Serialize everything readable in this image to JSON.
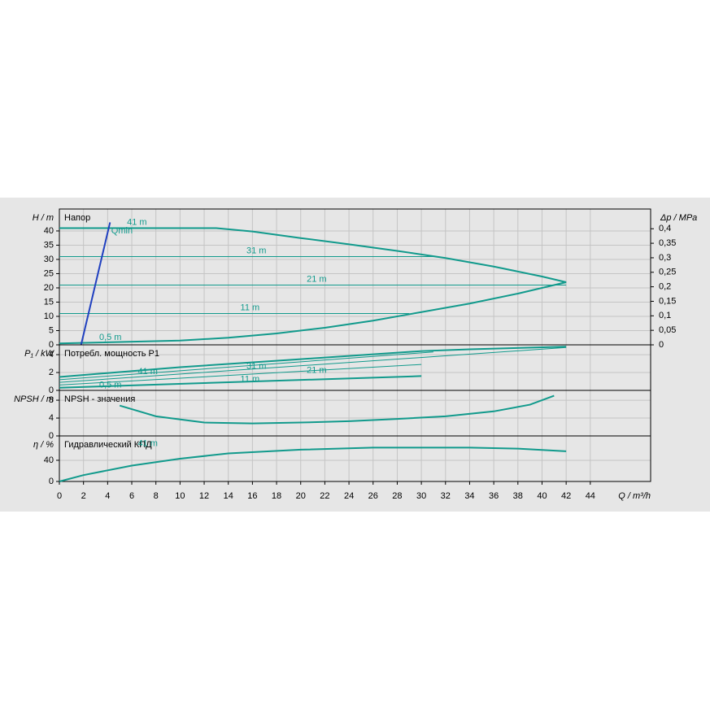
{
  "chart_data": [
    {
      "type": "line",
      "title": "Напор",
      "ylabel": "H / m",
      "y2label": "Δp / MPa",
      "ylim": [
        0,
        47.7
      ],
      "yticks": [
        0,
        5,
        10,
        15,
        20,
        25,
        30,
        35,
        40
      ],
      "y2lim": [
        0,
        0.468
      ],
      "y2ticks": [
        0,
        {
          "value": 0.05,
          "label": "0,05"
        },
        {
          "value": 0.1,
          "label": "0,1"
        },
        {
          "value": 0.15,
          "label": "0,15"
        },
        {
          "value": 0.2,
          "label": "0,2"
        },
        {
          "value": 0.25,
          "label": "0,25"
        },
        {
          "value": 0.3,
          "label": "0,3"
        },
        {
          "value": 0.35,
          "label": "0,35"
        },
        {
          "value": 0.4,
          "label": "0,4"
        }
      ],
      "grid": true,
      "series": [
        {
          "name": "41 m",
          "color": "#119a8c",
          "x": [
            0,
            13,
            16,
            20,
            24,
            28,
            32,
            36,
            40,
            42
          ],
          "values": [
            41,
            41,
            39.8,
            37.5,
            35.3,
            33,
            30.5,
            27.5,
            24,
            22
          ]
        },
        {
          "name": "31 m",
          "color": "#119a8c",
          "x": [
            0,
            31
          ],
          "values": [
            31,
            31
          ]
        },
        {
          "name": "21 m",
          "color": "#119a8c",
          "x": [
            0,
            42
          ],
          "values": [
            21,
            21
          ]
        },
        {
          "name": "11 m",
          "color": "#119a8c",
          "x": [
            0,
            29
          ],
          "values": [
            11,
            11
          ]
        },
        {
          "name": "0,5 m",
          "color": "#119a8c",
          "x": [
            0,
            10,
            14,
            18,
            22,
            26,
            30,
            34,
            38,
            42
          ],
          "values": [
            0.5,
            1.5,
            2.5,
            4,
            6,
            8.5,
            11.5,
            14.5,
            18,
            22
          ]
        },
        {
          "name": "Qmin",
          "color": "#2040c0",
          "x": [
            1.8,
            4.2
          ],
          "values": [
            0,
            43
          ]
        }
      ]
    },
    {
      "type": "line",
      "title": "Потребл. мощность P1",
      "ylabel": "P₁ / kW",
      "ylim": [
        0,
        5.1
      ],
      "yticks": [
        0,
        2,
        4
      ],
      "grid": true,
      "series": [
        {
          "name": "41 m",
          "color": "#119a8c",
          "x": [
            0,
            10,
            20,
            30,
            34,
            42
          ],
          "values": [
            1.5,
            2.6,
            3.5,
            4.4,
            4.6,
            4.9
          ]
        },
        {
          "name": "31 m",
          "color": "#119a8c",
          "x": [
            0,
            31
          ],
          "values": [
            1.2,
            4.3
          ]
        },
        {
          "name": "21 m",
          "color": "#119a8c",
          "x": [
            0,
            42
          ],
          "values": [
            0.9,
            4.8
          ]
        },
        {
          "name": "11 m",
          "color": "#119a8c",
          "x": [
            0,
            30
          ],
          "values": [
            0.6,
            2.9
          ]
        },
        {
          "name": "0,5 m",
          "color": "#119a8c",
          "x": [
            0,
            30
          ],
          "values": [
            0.3,
            1.6
          ]
        }
      ]
    },
    {
      "type": "line",
      "title": "NPSH - значения",
      "ylabel": "NPSH / m",
      "ylim": [
        0,
        10.2
      ],
      "yticks": [
        0,
        4,
        8
      ],
      "grid": true,
      "series": [
        {
          "color": "#119a8c",
          "x": [
            5,
            8,
            12,
            16,
            20,
            24,
            28,
            32,
            36,
            39,
            41
          ],
          "values": [
            6.8,
            4.4,
            3,
            2.8,
            3,
            3.3,
            3.8,
            4.4,
            5.5,
            7,
            9
          ]
        }
      ]
    },
    {
      "type": "line",
      "title": "Гидравлический КПД",
      "ylabel": "η / %",
      "xlabel": "Q / m³/h",
      "ylim": [
        0,
        86
      ],
      "yticks": [
        0,
        40
      ],
      "grid": true,
      "xlim": [
        0,
        49
      ],
      "xticks": [
        0,
        2,
        4,
        6,
        8,
        10,
        12,
        14,
        16,
        18,
        20,
        22,
        24,
        26,
        28,
        30,
        32,
        34,
        36,
        38,
        40,
        42,
        44
      ],
      "series": [
        {
          "name": "41 m",
          "color": "#119a8c",
          "x": [
            0,
            2,
            6,
            10,
            14,
            20,
            26,
            30,
            34,
            38,
            42
          ],
          "values": [
            0,
            12,
            30,
            43,
            53,
            60,
            64,
            64,
            64,
            62,
            57
          ]
        }
      ]
    }
  ]
}
